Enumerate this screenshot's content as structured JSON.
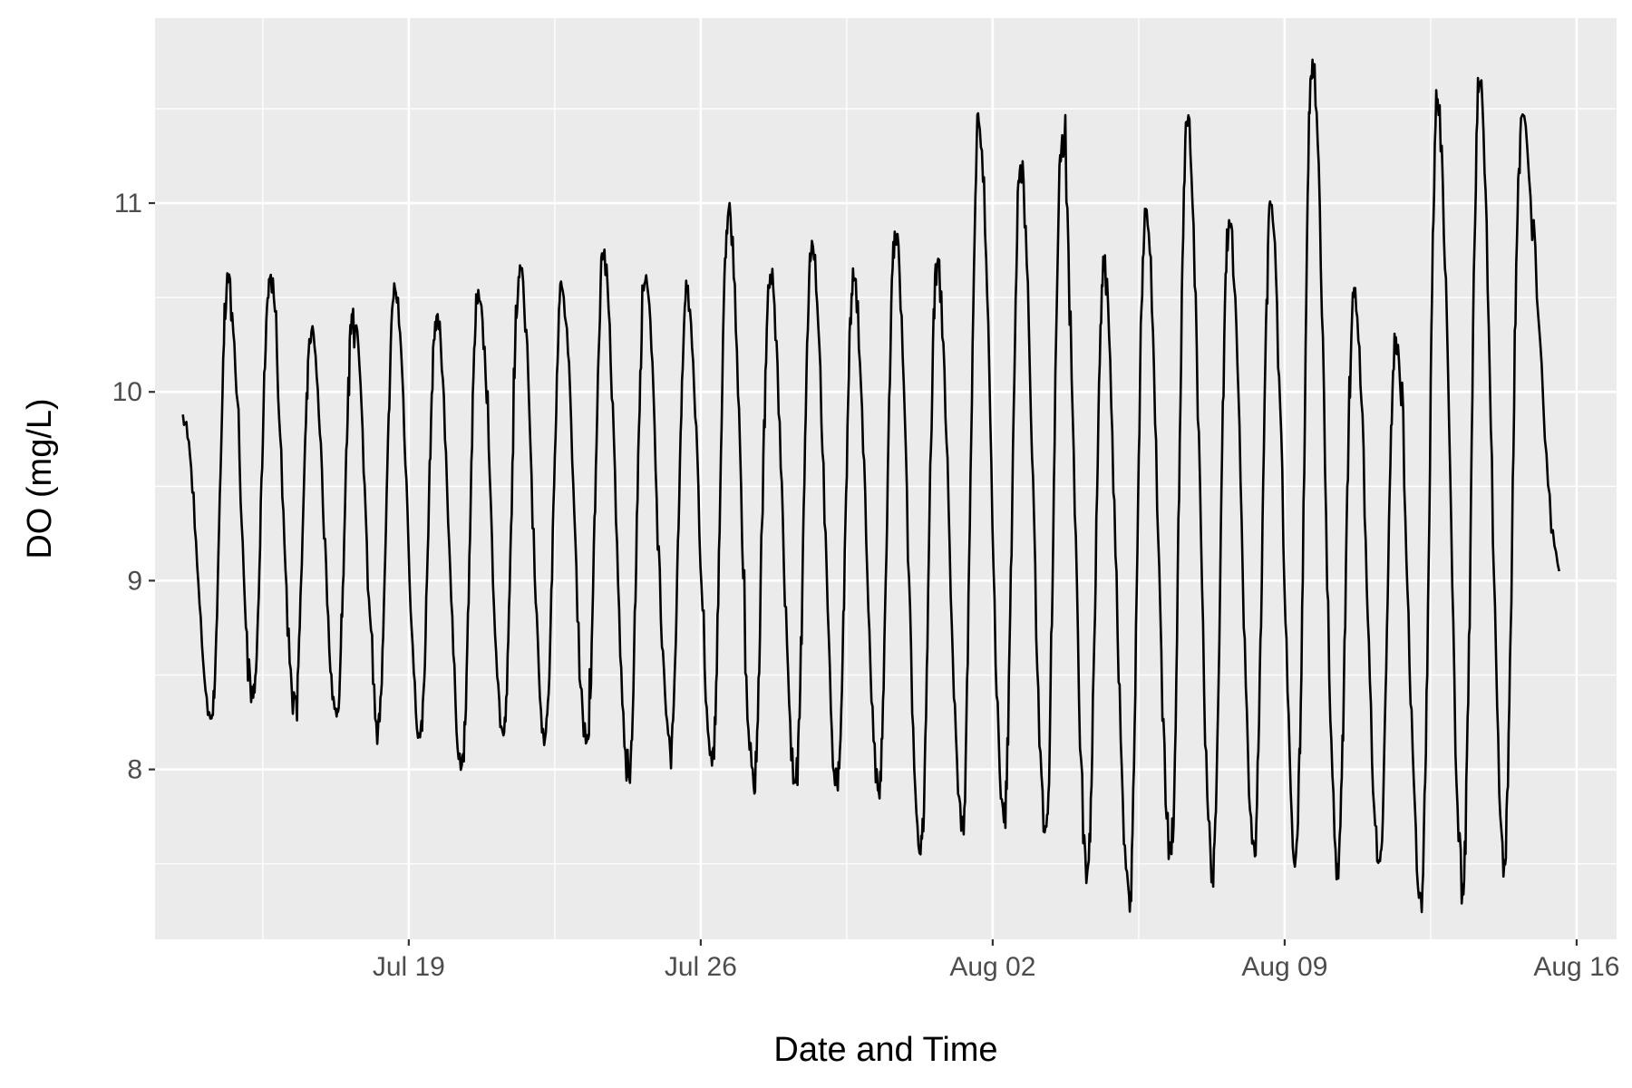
{
  "chart_data": {
    "type": "line",
    "title": "",
    "xlabel": "Date and Time",
    "ylabel": "DO (mg/L)",
    "x_ticks": [
      {
        "date": "2021-07-19",
        "label": "Jul 19"
      },
      {
        "date": "2021-07-26",
        "label": "Jul 26"
      },
      {
        "date": "2021-08-02",
        "label": "Aug 02"
      },
      {
        "date": "2021-08-09",
        "label": "Aug 09"
      },
      {
        "date": "2021-08-16",
        "label": "Aug 16"
      }
    ],
    "y_ticks": [
      8,
      9,
      10,
      11
    ],
    "xlim": [
      "2021-07-12T22:00",
      "2021-08-16T23:00"
    ],
    "ylim": [
      7.1,
      11.98
    ],
    "grid": true,
    "legend": "none",
    "colors": {
      "panel": "#ebebeb",
      "grid": "#ffffff",
      "line": "#000000",
      "tick_text": "#4d4d4d"
    },
    "series": [
      {
        "daily": [
          {
            "date": "2021-07-14",
            "max": 10.58,
            "min": 8.27
          },
          {
            "date": "2021-07-15",
            "max": 10.6,
            "min": 8.38
          },
          {
            "date": "2021-07-16",
            "max": 10.32,
            "min": 8.38
          },
          {
            "date": "2021-07-17",
            "max": 10.44,
            "min": 8.28
          },
          {
            "date": "2021-07-18",
            "max": 10.55,
            "min": 8.25
          },
          {
            "date": "2021-07-19",
            "max": 10.4,
            "min": 8.17
          },
          {
            "date": "2021-07-20",
            "max": 10.54,
            "min": 8.02
          },
          {
            "date": "2021-07-21",
            "max": 10.67,
            "min": 8.18
          },
          {
            "date": "2021-07-22",
            "max": 10.56,
            "min": 8.17
          },
          {
            "date": "2021-07-23",
            "max": 10.72,
            "min": 8.15
          },
          {
            "date": "2021-07-24",
            "max": 10.58,
            "min": 7.96
          },
          {
            "date": "2021-07-25",
            "max": 10.54,
            "min": 8.09
          },
          {
            "date": "2021-07-26",
            "max": 10.96,
            "min": 8.02
          },
          {
            "date": "2021-07-27",
            "max": 10.62,
            "min": 7.91
          },
          {
            "date": "2021-07-28",
            "max": 10.8,
            "min": 7.93
          },
          {
            "date": "2021-07-29",
            "max": 10.59,
            "min": 7.93
          },
          {
            "date": "2021-07-30",
            "max": 10.83,
            "min": 7.88
          },
          {
            "date": "2021-07-31",
            "max": 10.67,
            "min": 7.55
          },
          {
            "date": "2021-08-01",
            "max": 11.43,
            "min": 7.69
          },
          {
            "date": "2021-08-02",
            "max": 11.2,
            "min": 7.72
          },
          {
            "date": "2021-08-03",
            "max": 11.36,
            "min": 7.7
          },
          {
            "date": "2021-08-04",
            "max": 10.64,
            "min": 7.46
          },
          {
            "date": "2021-08-05",
            "max": 10.97,
            "min": 7.33
          },
          {
            "date": "2021-08-06",
            "max": 11.41,
            "min": 7.56
          },
          {
            "date": "2021-08-07",
            "max": 10.91,
            "min": 7.46
          },
          {
            "date": "2021-08-08",
            "max": 10.99,
            "min": 7.59
          },
          {
            "date": "2021-08-09",
            "max": 11.76,
            "min": 7.55
          },
          {
            "date": "2021-08-10",
            "max": 10.55,
            "min": 7.5
          },
          {
            "date": "2021-08-11",
            "max": 10.29,
            "min": 7.52
          },
          {
            "date": "2021-08-12",
            "max": 11.55,
            "min": 7.31
          },
          {
            "date": "2021-08-13",
            "max": 11.62,
            "min": 7.39
          },
          {
            "date": "2021-08-14",
            "max": 11.45,
            "min": 7.52
          }
        ],
        "start": {
          "datetime": "2021-07-13T14:00",
          "value": 9.88
        },
        "end": {
          "datetime": "2021-08-15T14:00",
          "value": 9.05
        }
      }
    ]
  }
}
